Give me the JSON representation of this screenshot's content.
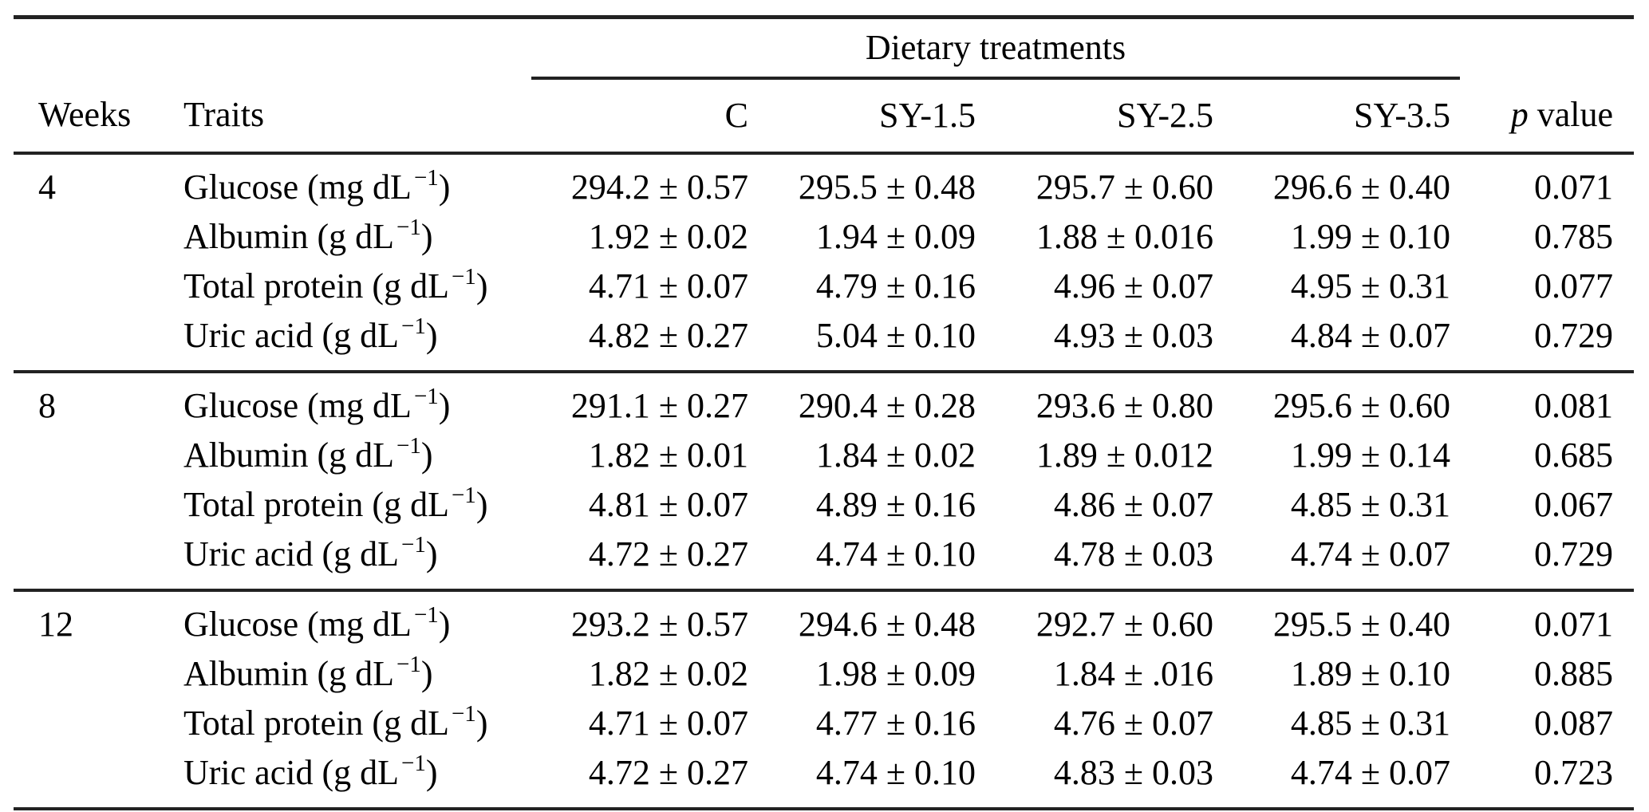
{
  "colors": {
    "background": "#ffffff",
    "text": "#000000",
    "rule": "#222222"
  },
  "table": {
    "span_header": "Dietary treatments",
    "weeks_label": "Weeks",
    "traits_label": "Traits",
    "treatment_columns": [
      "C",
      "SY-1.5",
      "SY-2.5",
      "SY-3.5"
    ],
    "p_header": {
      "italic": "p",
      "text": "value"
    },
    "groups": [
      {
        "week": "4",
        "rows": [
          {
            "trait": "Glucose",
            "unit": "mg dL",
            "exponent": "−1",
            "values": [
              "294.2 ± 0.57",
              "295.5 ± 0.48",
              "295.7 ± 0.60",
              "296.6 ± 0.40"
            ],
            "p": "0.071"
          },
          {
            "trait": "Albumin",
            "unit": "g dL",
            "exponent": "−1",
            "values": [
              "1.92 ± 0.02",
              "1.94 ± 0.09",
              "1.88 ± 0.016",
              "1.99 ± 0.10"
            ],
            "p": "0.785"
          },
          {
            "trait": "Total protein",
            "unit": "g dL",
            "exponent": "−1",
            "values": [
              "4.71 ± 0.07",
              "4.79 ± 0.16",
              "4.96 ± 0.07",
              "4.95 ± 0.31"
            ],
            "p": "0.077"
          },
          {
            "trait": "Uric acid",
            "unit": "g dL",
            "exponent": "−1",
            "values": [
              "4.82 ± 0.27",
              "5.04 ± 0.10",
              "4.93 ± 0.03",
              "4.84 ± 0.07"
            ],
            "p": "0.729"
          }
        ]
      },
      {
        "week": "8",
        "rows": [
          {
            "trait": "Glucose",
            "unit": "mg dL",
            "exponent": "−1",
            "values": [
              "291.1 ± 0.27",
              "290.4 ± 0.28",
              "293.6 ± 0.80",
              "295.6 ± 0.60"
            ],
            "p": "0.081"
          },
          {
            "trait": "Albumin",
            "unit": "g dL",
            "exponent": "−1",
            "values": [
              "1.82 ± 0.01",
              "1.84 ± 0.02",
              "1.89 ± 0.012",
              "1.99 ± 0.14"
            ],
            "p": "0.685"
          },
          {
            "trait": "Total protein",
            "unit": "g dL",
            "exponent": "−1",
            "values": [
              "4.81 ± 0.07",
              "4.89 ± 0.16",
              "4.86 ± 0.07",
              "4.85 ± 0.31"
            ],
            "p": "0.067"
          },
          {
            "trait": "Uric acid",
            "unit": "g dL",
            "exponent": "−1",
            "values": [
              "4.72 ± 0.27",
              "4.74 ± 0.10",
              "4.78 ± 0.03",
              "4.74 ± 0.07"
            ],
            "p": "0.729"
          }
        ]
      },
      {
        "week": "12",
        "rows": [
          {
            "trait": "Glucose",
            "unit": "mg dL",
            "exponent": "−1",
            "values": [
              "293.2 ± 0.57",
              "294.6 ± 0.48",
              "292.7 ± 0.60",
              "295.5 ± 0.40"
            ],
            "p": "0.071"
          },
          {
            "trait": "Albumin",
            "unit": "g dL",
            "exponent": "−1",
            "values": [
              "1.82 ± 0.02",
              "1.98 ± 0.09",
              "1.84 ± .016",
              "1.89 ± 0.10"
            ],
            "p": "0.885"
          },
          {
            "trait": "Total protein",
            "unit": "g dL",
            "exponent": "−1",
            "values": [
              "4.71 ± 0.07",
              "4.77 ± 0.16",
              "4.76 ± 0.07",
              "4.85 ± 0.31"
            ],
            "p": "0.087"
          },
          {
            "trait": "Uric acid",
            "unit": "g dL",
            "exponent": "−1",
            "values": [
              "4.72 ± 0.27",
              "4.74 ± 0.10",
              "4.83 ± 0.03",
              "4.74 ± 0.07"
            ],
            "p": "0.723"
          }
        ]
      }
    ]
  }
}
